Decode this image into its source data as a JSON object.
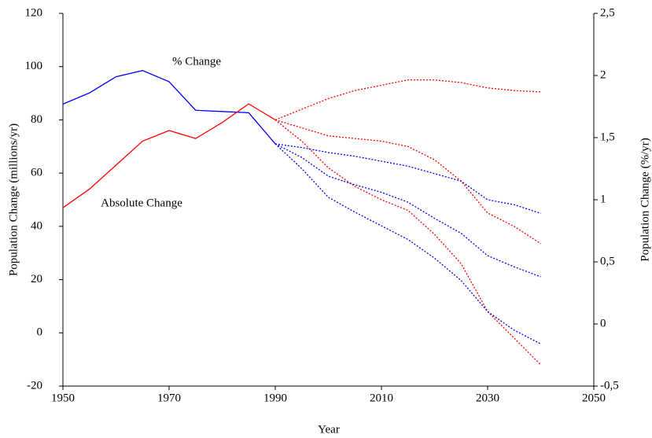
{
  "chart_data": {
    "type": "line",
    "xlabel": "Year",
    "ylabel": "Population Change (millions/yr)",
    "y2label": "Population Change (%/yr)",
    "xlim": [
      1950,
      2050
    ],
    "xticks": [
      1950,
      1970,
      1990,
      2010,
      2030,
      2050
    ],
    "ylim": [
      -20,
      120
    ],
    "yticks": [
      -20,
      0,
      20,
      40,
      60,
      80,
      100,
      120
    ],
    "y2lim": [
      -0.5,
      2.5
    ],
    "y2ticks": [
      {
        "value": -0.5,
        "label": "-0,5"
      },
      0,
      {
        "value": 0.5,
        "label": "0,5"
      },
      1,
      {
        "value": 1.5,
        "label": "1,5"
      },
      2,
      {
        "value": 2.5,
        "label": "2,5"
      }
    ],
    "series": [
      {
        "name": "% Change",
        "color": "#0000ff",
        "axis": "y2",
        "line_style": "solid",
        "x": [
          1950,
          1955,
          1960,
          1965,
          1970,
          1975,
          1980,
          1985,
          1990
        ],
        "values": [
          1.77,
          1.86,
          1.99,
          2.04,
          1.95,
          1.72,
          1.71,
          1.7,
          1.45
        ]
      },
      {
        "name": "Absolute Change",
        "color": "#ff0000",
        "line_style": "solid",
        "x": [
          1950,
          1955,
          1960,
          1965,
          1970,
          1975,
          1980,
          1985,
          1990
        ],
        "values": [
          47,
          54,
          63,
          72,
          76,
          73,
          79,
          86,
          80
        ]
      },
      {
        "color": "#ff0000",
        "line_style": "dotted",
        "x": [
          1990,
          1995,
          2000,
          2005,
          2010,
          2015,
          2020,
          2025,
          2030,
          2035,
          2040
        ],
        "values": [
          80,
          84,
          88,
          91,
          93,
          95,
          95,
          94,
          92,
          91,
          90.5
        ]
      },
      {
        "color": "#ff0000",
        "line_style": "dotted",
        "x": [
          1990,
          1995,
          2000,
          2005,
          2010,
          2015,
          2020,
          2025,
          2030,
          2035,
          2040
        ],
        "values": [
          80,
          77,
          74,
          73,
          72,
          70,
          65,
          57,
          45,
          40,
          33.5
        ]
      },
      {
        "color": "#ff0000",
        "line_style": "dotted",
        "x": [
          1990,
          1995,
          2000,
          2005,
          2010,
          2015,
          2020,
          2025,
          2030,
          2035,
          2040
        ],
        "values": [
          80,
          72,
          62,
          55,
          50,
          46,
          37,
          26,
          8,
          -2,
          -12
        ]
      },
      {
        "color": "#0000ff",
        "axis": "y2",
        "line_style": "dotted",
        "x": [
          1990,
          1995,
          2000,
          2005,
          2010,
          2015,
          2020,
          2025,
          2030,
          2035,
          2040
        ],
        "values": [
          1.45,
          1.42,
          1.38,
          1.35,
          1.31,
          1.27,
          1.21,
          1.15,
          1.0,
          0.96,
          0.89
        ]
      },
      {
        "color": "#0000ff",
        "axis": "y2",
        "line_style": "dotted",
        "x": [
          1990,
          1995,
          2000,
          2005,
          2010,
          2015,
          2020,
          2025,
          2030,
          2035,
          2040
        ],
        "values": [
          1.45,
          1.34,
          1.19,
          1.12,
          1.06,
          0.98,
          0.85,
          0.73,
          0.55,
          0.46,
          0.38
        ]
      },
      {
        "color": "#0000ff",
        "axis": "y2",
        "line_style": "dotted",
        "x": [
          1990,
          1995,
          2000,
          2005,
          2010,
          2015,
          2020,
          2025,
          2030,
          2035,
          2040
        ],
        "values": [
          1.45,
          1.25,
          1.02,
          0.9,
          0.79,
          0.68,
          0.53,
          0.35,
          0.1,
          -0.05,
          -0.16
        ]
      }
    ]
  }
}
